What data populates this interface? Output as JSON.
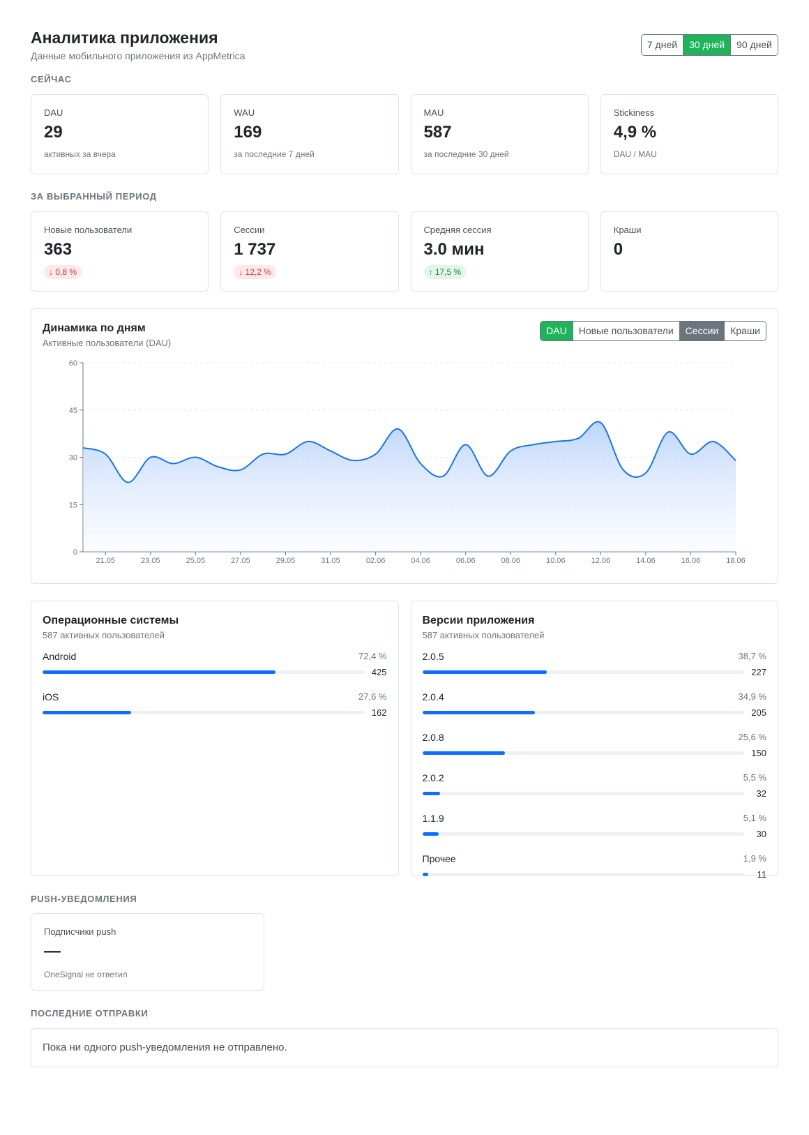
{
  "header": {
    "title": "Аналитика приложения",
    "subtitle": "Данные мобильного приложения из AppMetrica",
    "periods": [
      "7 дней",
      "30 дней",
      "90 дней"
    ],
    "active_period": 1
  },
  "now": {
    "label": "Сейчас",
    "cards": [
      {
        "label": "DAU",
        "value": "29",
        "hint": "активных за вчера"
      },
      {
        "label": "WAU",
        "value": "169",
        "hint": "за последние 7 дней"
      },
      {
        "label": "MAU",
        "value": "587",
        "hint": "за последние 30 дней"
      },
      {
        "label": "Stickiness",
        "value": "4,9 %",
        "hint": "DAU / MAU"
      }
    ]
  },
  "period": {
    "label": "За выбранный период",
    "cards": [
      {
        "label": "Новые пользователи",
        "value": "363",
        "delta": "↓ 0,8 %",
        "dir": "down"
      },
      {
        "label": "Сессии",
        "value": "1 737",
        "delta": "↓ 12,2 %",
        "dir": "down"
      },
      {
        "label": "Средняя сессия",
        "value": "3.0 мин",
        "delta": "↑ 17,5 %",
        "dir": "up"
      },
      {
        "label": "Краши",
        "value": "0",
        "delta": "",
        "dir": ""
      }
    ]
  },
  "chart": {
    "title": "Динамика по дням",
    "subtitle": "Активные пользователи (DAU)",
    "metrics": [
      "DAU",
      "Новые пользователи",
      "Сессии",
      "Краши"
    ],
    "active_metric": 0,
    "selected_metric": 2,
    "line_color": "#1a73e8"
  },
  "chart_data": {
    "type": "area",
    "x": [
      "20.05",
      "21.05",
      "22.05",
      "23.05",
      "24.05",
      "25.05",
      "26.05",
      "27.05",
      "28.05",
      "29.05",
      "30.05",
      "31.05",
      "01.06",
      "02.06",
      "03.06",
      "04.06",
      "05.06",
      "06.06",
      "07.06",
      "08.06",
      "09.06",
      "10.06",
      "11.06",
      "12.06",
      "13.06",
      "14.06",
      "15.06",
      "16.06",
      "17.06",
      "18.06"
    ],
    "tick_labels": [
      "21.05",
      "23.05",
      "25.05",
      "27.05",
      "29.05",
      "31.05",
      "02.06",
      "04.06",
      "06.06",
      "08.06",
      "10.06",
      "12.06",
      "14.06",
      "16.06",
      "18.06"
    ],
    "series": [
      {
        "values": [
          33,
          31,
          22,
          30,
          28,
          30,
          27,
          26,
          31,
          31,
          35,
          32,
          29,
          31,
          39,
          28,
          24,
          34,
          24,
          32,
          34,
          35,
          36,
          41,
          26,
          25,
          38,
          31,
          35,
          29
        ]
      }
    ],
    "ylim": [
      0,
      60
    ],
    "yticks": [
      0,
      15,
      30,
      45,
      60
    ],
    "grid": true
  },
  "os": {
    "title": "Операционные системы",
    "subtitle": "587 активных пользователей",
    "items": [
      {
        "name": "Android",
        "pct": "72,4 %",
        "count": "425",
        "share": 0.724
      },
      {
        "name": "iOS",
        "pct": "27,6 %",
        "count": "162",
        "share": 0.276
      }
    ]
  },
  "versions": {
    "title": "Версии приложения",
    "subtitle": "587 активных пользователей",
    "items": [
      {
        "name": "2.0.5",
        "pct": "38,7 %",
        "count": "227",
        "share": 0.387
      },
      {
        "name": "2.0.4",
        "pct": "34,9 %",
        "count": "205",
        "share": 0.349
      },
      {
        "name": "2.0.8",
        "pct": "25,6 %",
        "count": "150",
        "share": 0.256
      },
      {
        "name": "2.0.2",
        "pct": "5,5 %",
        "count": "32",
        "share": 0.055
      },
      {
        "name": "1.1.9",
        "pct": "5,1 %",
        "count": "30",
        "share": 0.051
      },
      {
        "name": "Прочее",
        "pct": "1,9 %",
        "count": "11",
        "share": 0.019
      }
    ]
  },
  "push": {
    "label": "Push-уведомления",
    "card_label": "Подписчики push",
    "value": "—",
    "hint": "OneSignal не ответил"
  },
  "recent": {
    "label": "Последние отправки",
    "empty_text": "Пока ни одного push-уведомления не отправлено."
  }
}
